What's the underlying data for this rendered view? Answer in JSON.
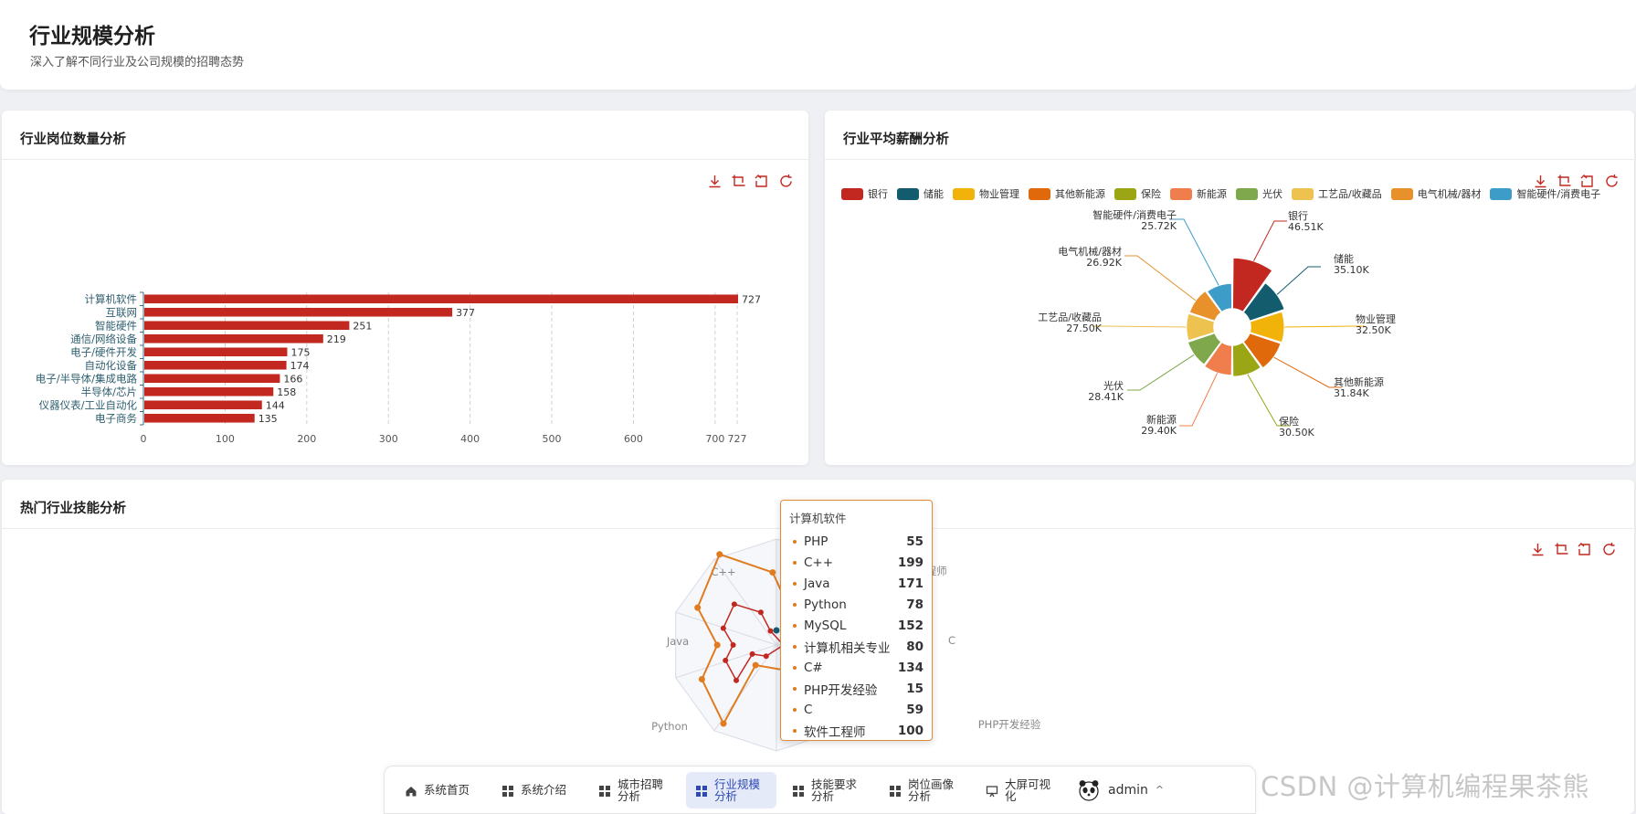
{
  "header": {
    "title": "行业规模分析",
    "subtitle": "深入了解不同行业及公司规模的招聘态势"
  },
  "bar_card": {
    "title": "行业岗位数量分析"
  },
  "pie_card": {
    "title": "行业平均薪酬分析"
  },
  "radar_card": {
    "title": "热门行业技能分析"
  },
  "toolbox_icons": [
    "download-icon",
    "crop-icon",
    "crop-reset-icon",
    "refresh-icon"
  ],
  "colors": {
    "bar": "#c2281f",
    "radar_series_main": "#e07b1f",
    "accent": "#2d49b4"
  },
  "chart_data": [
    {
      "type": "bar",
      "orientation": "horizontal",
      "categories": [
        "计算机软件",
        "互联网",
        "智能硬件",
        "通信/网络设备",
        "电子/硬件开发",
        "自动化设备",
        "电子/半导体/集成电路",
        "半导体/芯片",
        "仪器仪表/工业自动化",
        "电子商务"
      ],
      "values": [
        727,
        377,
        251,
        219,
        175,
        174,
        166,
        158,
        144,
        135
      ],
      "x_ticks": [
        "0",
        "100",
        "200",
        "300",
        "400",
        "500",
        "600",
        "700",
        "727"
      ],
      "xlim": [
        0,
        727
      ],
      "grid": true,
      "data_labels": true
    },
    {
      "type": "pie",
      "variant": "rose",
      "legend_position": "top",
      "categories": [
        "银行",
        "储能",
        "物业管理",
        "其他新能源",
        "保险",
        "新能源",
        "光伏",
        "工艺品/收藏品",
        "电气机械/器材",
        "智能硬件/消费电子"
      ],
      "values": [
        46.51,
        35.1,
        32.5,
        31.84,
        30.5,
        29.4,
        28.41,
        27.5,
        26.92,
        25.72
      ],
      "value_labels": [
        "46.51K",
        "35.10K",
        "32.50K",
        "31.84K",
        "30.50K",
        "29.40K",
        "28.41K",
        "27.50K",
        "26.92K",
        "25.72K"
      ],
      "colors": [
        "#c2281f",
        "#135c6e",
        "#f1b20a",
        "#e0690c",
        "#9aa614",
        "#f07d4c",
        "#7fa74b",
        "#edc24f",
        "#e8902a",
        "#3e9cc8"
      ]
    },
    {
      "type": "radar",
      "indicators": [
        "C++",
        "Java",
        "Python",
        "软件工程师",
        "C",
        "PHP开发经验"
      ],
      "tooltip": {
        "title": "计算机软件",
        "rows": [
          {
            "name": "PHP",
            "value": 55
          },
          {
            "name": "C++",
            "value": 199
          },
          {
            "name": "Java",
            "value": 171
          },
          {
            "name": "Python",
            "value": 78
          },
          {
            "name": "MySQL",
            "value": 152
          },
          {
            "name": "计算机相关专业",
            "value": 80
          },
          {
            "name": "C#",
            "value": 134
          },
          {
            "name": "PHP开发经验",
            "value": 15
          },
          {
            "name": "C",
            "value": 59
          },
          {
            "name": "软件工程师",
            "value": 100
          }
        ]
      }
    }
  ],
  "nav": {
    "items": [
      {
        "label": "系统首页",
        "icon": "home-icon"
      },
      {
        "label": "系统介绍",
        "icon": "grid-icon"
      },
      {
        "label": "城市招聘分析",
        "icon": "grid-icon"
      },
      {
        "label": "行业规模分析",
        "icon": "grid-icon",
        "active": true
      },
      {
        "label": "技能要求分析",
        "icon": "grid-icon"
      },
      {
        "label": "岗位画像分析",
        "icon": "grid-icon"
      },
      {
        "label": "大屏可视化",
        "icon": "monitor-icon"
      }
    ],
    "user": {
      "name": "admin",
      "caret": "^"
    }
  },
  "watermark": "CSDN @计算机编程果茶熊"
}
